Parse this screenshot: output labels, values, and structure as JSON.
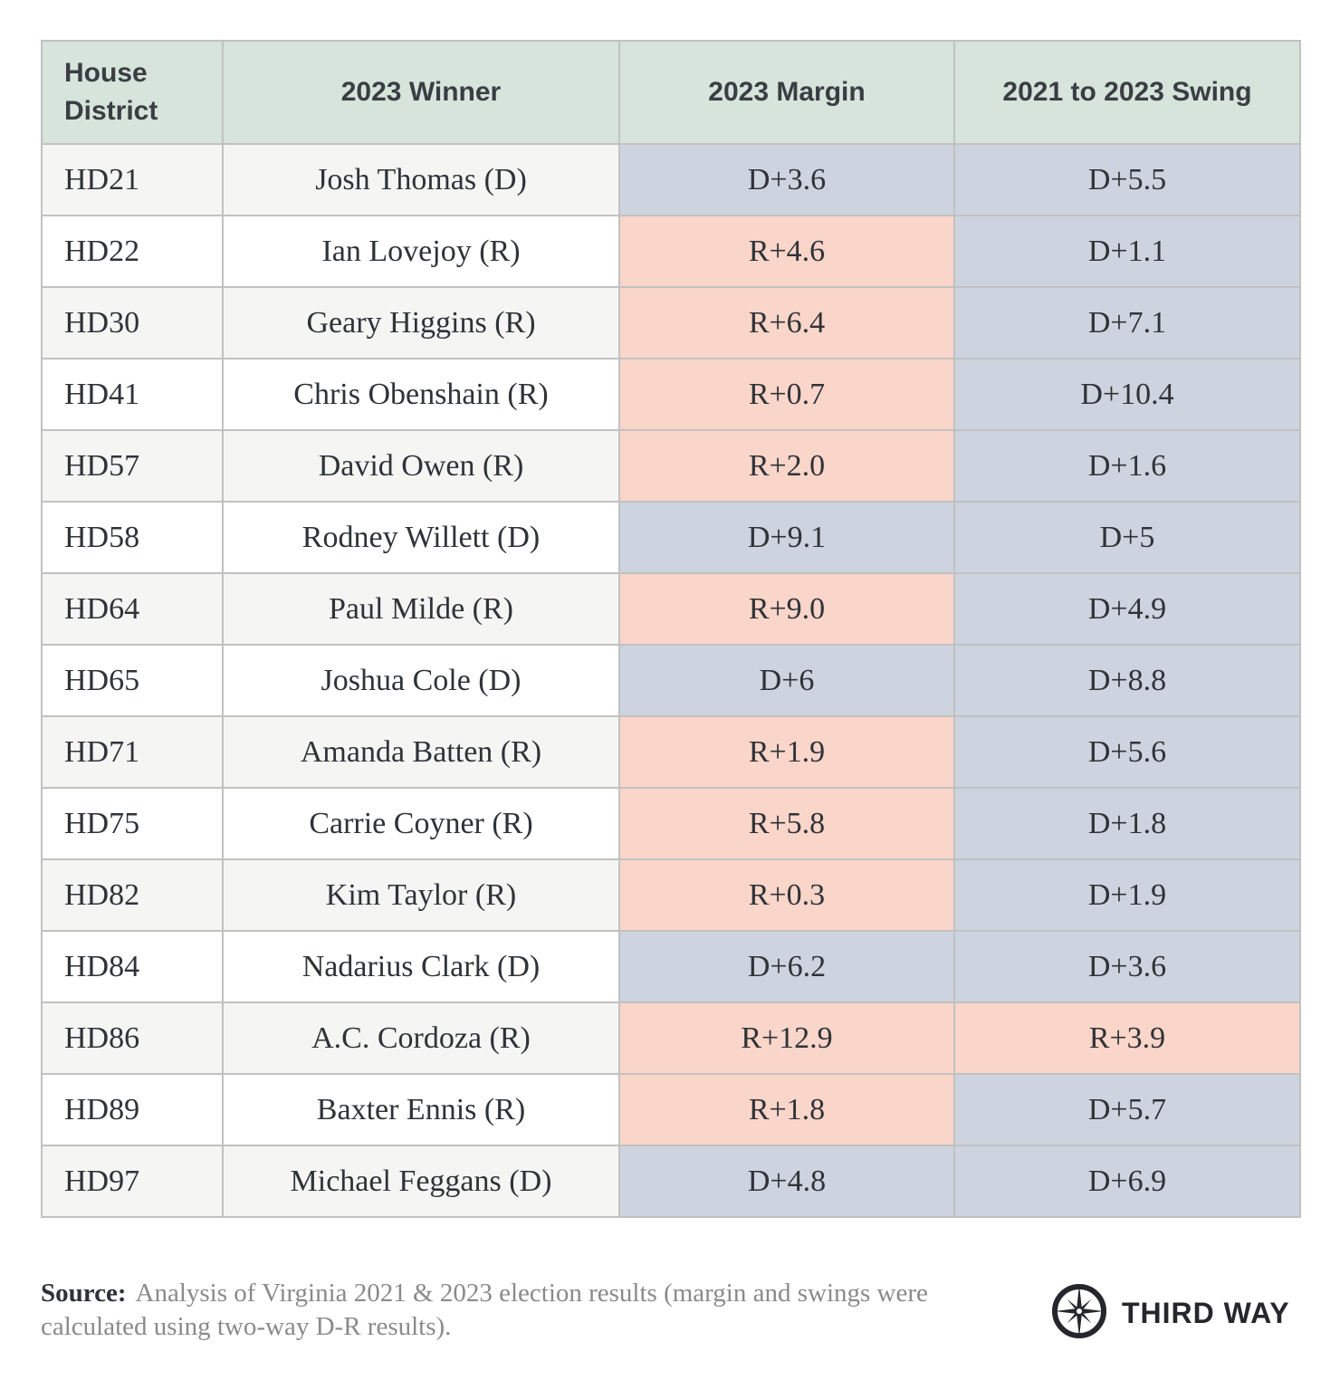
{
  "chart_data": {
    "type": "table",
    "columns": [
      "House District",
      "2023 Winner",
      "2023 Margin",
      "2021 to 2023 Swing"
    ],
    "rows": [
      {
        "district": "HD21",
        "winner": "Josh Thomas (D)",
        "margin": "D+3.6",
        "margin_party": "D",
        "swing": "D+5.5",
        "swing_party": "D"
      },
      {
        "district": "HD22",
        "winner": "Ian Lovejoy (R)",
        "margin": "R+4.6",
        "margin_party": "R",
        "swing": "D+1.1",
        "swing_party": "D"
      },
      {
        "district": "HD30",
        "winner": "Geary Higgins (R)",
        "margin": "R+6.4",
        "margin_party": "R",
        "swing": "D+7.1",
        "swing_party": "D"
      },
      {
        "district": "HD41",
        "winner": "Chris Obenshain (R)",
        "margin": "R+0.7",
        "margin_party": "R",
        "swing": "D+10.4",
        "swing_party": "D"
      },
      {
        "district": "HD57",
        "winner": "David Owen (R)",
        "margin": "R+2.0",
        "margin_party": "R",
        "swing": "D+1.6",
        "swing_party": "D"
      },
      {
        "district": "HD58",
        "winner": "Rodney Willett (D)",
        "margin": "D+9.1",
        "margin_party": "D",
        "swing": "D+5",
        "swing_party": "D"
      },
      {
        "district": "HD64",
        "winner": "Paul Milde (R)",
        "margin": "R+9.0",
        "margin_party": "R",
        "swing": "D+4.9",
        "swing_party": "D"
      },
      {
        "district": "HD65",
        "winner": "Joshua Cole (D)",
        "margin": "D+6",
        "margin_party": "D",
        "swing": "D+8.8",
        "swing_party": "D"
      },
      {
        "district": "HD71",
        "winner": "Amanda Batten (R)",
        "margin": "R+1.9",
        "margin_party": "R",
        "swing": "D+5.6",
        "swing_party": "D"
      },
      {
        "district": "HD75",
        "winner": "Carrie Coyner (R)",
        "margin": "R+5.8",
        "margin_party": "R",
        "swing": "D+1.8",
        "swing_party": "D"
      },
      {
        "district": "HD82",
        "winner": "Kim Taylor (R)",
        "margin": "R+0.3",
        "margin_party": "R",
        "swing": "D+1.9",
        "swing_party": "D"
      },
      {
        "district": "HD84",
        "winner": "Nadarius Clark (D)",
        "margin": "D+6.2",
        "margin_party": "D",
        "swing": "D+3.6",
        "swing_party": "D"
      },
      {
        "district": "HD86",
        "winner": "A.C. Cordoza (R)",
        "margin": "R+12.9",
        "margin_party": "R",
        "swing": "R+3.9",
        "swing_party": "R"
      },
      {
        "district": "HD89",
        "winner": "Baxter Ennis (R)",
        "margin": "R+1.8",
        "margin_party": "R",
        "swing": "D+5.7",
        "swing_party": "D"
      },
      {
        "district": "HD97",
        "winner": "Michael Feggans (D)",
        "margin": "D+4.8",
        "margin_party": "D",
        "swing": "D+6.9",
        "swing_party": "D"
      }
    ],
    "layout": {
      "header_row": true,
      "grid": true,
      "legend": "none"
    }
  },
  "footer": {
    "source_label": "Source:",
    "source_text": "Analysis of Virginia 2021 & 2023 election results (margin and swings were calculated using two-way D-R results).",
    "brand": "THIRD WAY"
  },
  "colors": {
    "header_bg": "#d6e4db",
    "dem_cell": "#cdd4df",
    "rep_cell": "#fad5c9",
    "row_alt": "#f5f5f4",
    "text_dark": "#2f3338",
    "text_gray": "#8a8a8a",
    "brand_dark": "#25272c"
  }
}
